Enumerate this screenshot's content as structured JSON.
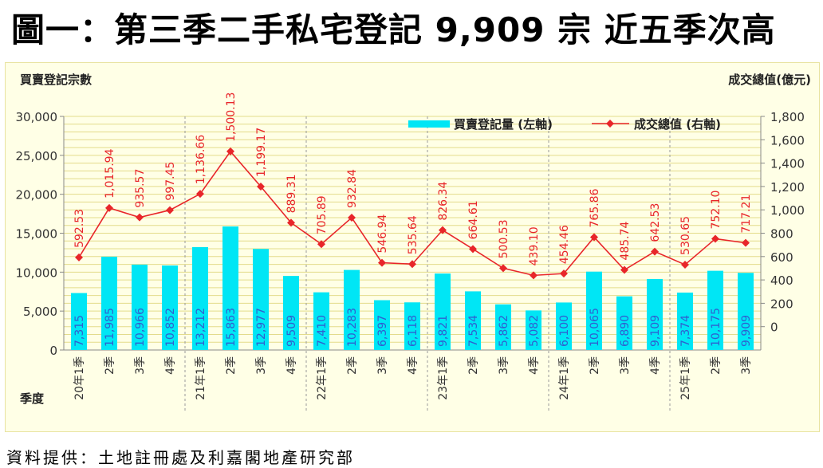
{
  "title": "圖一：第三季二手私宅登記 9,909 宗  近五季次高",
  "source": "資料提供：土地註冊處及利嘉閣地產研究部",
  "chart_data": {
    "type": "bar+line",
    "left_axis_label": "買賣登記宗數",
    "right_axis_label": "成交總值(億元)",
    "x_axis_label": "季度",
    "legend": {
      "bar": "買賣登記量 (左軸)",
      "line": "成交總值 (右軸)",
      "position": "top-right"
    },
    "left_ylim": [
      0,
      30000
    ],
    "left_ticks": [
      "0",
      "5,000",
      "10,000",
      "15,000",
      "20,000",
      "25,000",
      "30,000"
    ],
    "right_ylim": [
      -200,
      1800
    ],
    "right_ticks": [
      "0",
      "200",
      "400",
      "600",
      "800",
      "1,000",
      "1,200",
      "1,400",
      "1,600",
      "1,800"
    ],
    "categories": [
      "20年1季",
      "2季",
      "3季",
      "4季",
      "21年1季",
      "2季",
      "3季",
      "4季",
      "22年1季",
      "2季",
      "3季",
      "4季",
      "23年1季",
      "2季",
      "3季",
      "4季",
      "24年1季",
      "2季",
      "3季",
      "4季",
      "25年1季",
      "2季",
      "3季"
    ],
    "bar_values": [
      7315,
      11985,
      10966,
      10852,
      13212,
      15863,
      12977,
      9509,
      7410,
      10283,
      6397,
      6118,
      9821,
      7534,
      5862,
      5082,
      6100,
      10065,
      6890,
      9109,
      7374,
      10175,
      9909
    ],
    "bar_labels": [
      "7,315",
      "11,985",
      "10,966",
      "10,852",
      "13,212",
      "15,863",
      "12,977",
      "9,509",
      "7,410",
      "10,283",
      "6,397",
      "6,118",
      "9,821",
      "7,534",
      "5,862",
      "5,082",
      "6,100",
      "10,065",
      "6,890",
      "9,109",
      "7,374",
      "10,175",
      "9,909"
    ],
    "line_values": [
      592.53,
      1015.94,
      935.57,
      997.45,
      1136.66,
      1500.13,
      1199.17,
      889.31,
      705.89,
      932.84,
      546.94,
      535.64,
      826.34,
      664.61,
      500.53,
      439.1,
      454.46,
      765.86,
      485.74,
      642.53,
      530.65,
      752.1,
      717.21
    ],
    "line_labels": [
      "592.53",
      "1,015.94",
      "935.57",
      "997.45",
      "1,136.66",
      "1,500.13",
      "1,199.17",
      "889.31",
      "705.89",
      "932.84",
      "546.94",
      "535.64",
      "826.34",
      "664.61",
      "500.53",
      "439.10",
      "454.46",
      "765.86",
      "485.74",
      "642.53",
      "530.65",
      "752.10",
      "717.21"
    ],
    "colors": {
      "bar": "#00e6f5",
      "line": "#e8262a",
      "bar_label": "#2f5fd0",
      "line_label": "#e8262a",
      "grid": "#e3dc8a"
    }
  }
}
